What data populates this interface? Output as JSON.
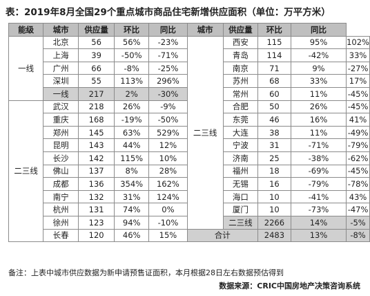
{
  "title": "表：2019年8月全国29个重点城市商品住宅新增供应面积（单位：万平方米）",
  "headers": [
    "能级",
    "城市",
    "供应量",
    "环比",
    "同比",
    "城市",
    "供应量",
    "环比",
    "同比"
  ],
  "left": {
    "tier1": {
      "level": "一线",
      "rows": [
        {
          "city": "北京",
          "supply": "56",
          "mom": "56%",
          "yoy": "-23%"
        },
        {
          "city": "上海",
          "supply": "39",
          "mom": "-50%",
          "yoy": "-71%"
        },
        {
          "city": "广州",
          "supply": "66",
          "mom": "-8%",
          "yoy": "-25%"
        },
        {
          "city": "深圳",
          "supply": "55",
          "mom": "113%",
          "yoy": "296%"
        }
      ],
      "subtotal": {
        "city": "一线",
        "supply": "217",
        "mom": "2%",
        "yoy": "-30%"
      }
    },
    "tier23": {
      "level": "二三线",
      "rows": [
        {
          "city": "武汉",
          "supply": "218",
          "mom": "26%",
          "yoy": "-9%"
        },
        {
          "city": "重庆",
          "supply": "168",
          "mom": "-19%",
          "yoy": "-50%"
        },
        {
          "city": "郑州",
          "supply": "145",
          "mom": "63%",
          "yoy": "529%"
        },
        {
          "city": "昆明",
          "supply": "143",
          "mom": "44%",
          "yoy": "12%"
        },
        {
          "city": "长沙",
          "supply": "142",
          "mom": "115%",
          "yoy": "10%"
        },
        {
          "city": "佛山",
          "supply": "137",
          "mom": "8%",
          "yoy": "28%"
        },
        {
          "city": "成都",
          "supply": "136",
          "mom": "354%",
          "yoy": "162%"
        },
        {
          "city": "南宁",
          "supply": "132",
          "mom": "31%",
          "yoy": "124%"
        },
        {
          "city": "杭州",
          "supply": "131",
          "mom": "74%",
          "yoy": "0%"
        },
        {
          "city": "徐州",
          "supply": "123",
          "mom": "94%",
          "yoy": "-10%"
        },
        {
          "city": "长春",
          "supply": "120",
          "mom": "46%",
          "yoy": "15%"
        }
      ]
    }
  },
  "right": {
    "level": "二三线",
    "rows": [
      {
        "city": "西安",
        "supply": "115",
        "mom": "95%",
        "yoy": "102%"
      },
      {
        "city": "青岛",
        "supply": "114",
        "mom": "-42%",
        "yoy": "33%"
      },
      {
        "city": "南京",
        "supply": "71",
        "mom": "9%",
        "yoy": "-27%"
      },
      {
        "city": "苏州",
        "supply": "68",
        "mom": "33%",
        "yoy": "17%"
      },
      {
        "city": "常州",
        "supply": "60",
        "mom": "11%",
        "yoy": "-45%"
      },
      {
        "city": "合肥",
        "supply": "50",
        "mom": "26%",
        "yoy": "-45%"
      },
      {
        "city": "东莞",
        "supply": "46",
        "mom": "16%",
        "yoy": "41%"
      },
      {
        "city": "大连",
        "supply": "38",
        "mom": "11%",
        "yoy": "-49%"
      },
      {
        "city": "宁波",
        "supply": "31",
        "mom": "-71%",
        "yoy": "-79%"
      },
      {
        "city": "济南",
        "supply": "25",
        "mom": "-38%",
        "yoy": "-62%"
      },
      {
        "city": "福州",
        "supply": "18",
        "mom": "-69%",
        "yoy": "-45%"
      },
      {
        "city": "无锡",
        "supply": "16",
        "mom": "-79%",
        "yoy": "-78%"
      },
      {
        "city": "海口",
        "supply": "10",
        "mom": "-41%",
        "yoy": "43%"
      },
      {
        "city": "厦门",
        "supply": "10",
        "mom": "-73%",
        "yoy": "-47%"
      }
    ],
    "subtotal": {
      "city": "二三线",
      "supply": "2266",
      "mom": "14%",
      "yoy": "-5%"
    },
    "total": {
      "label": "合计",
      "supply": "2483",
      "mom": "13%",
      "yoy": "-8%"
    }
  },
  "note": "备注：上表中城市供应数据为新申请预售证面积，本月根据28日左右数据预估得到",
  "source": "数据来源：CRIC中国房地产决策咨询系统"
}
